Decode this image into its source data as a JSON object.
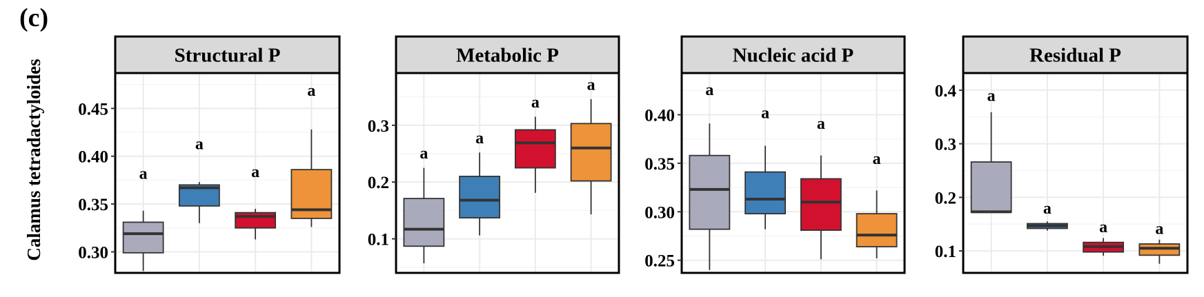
{
  "figure": {
    "panel_label": "(c)",
    "ylabel": "Calamus tetradactyloides"
  },
  "colors": [
    "#a9abbd",
    "#3e7fb8",
    "#d2112e",
    "#ee9339"
  ],
  "chart_data": [
    {
      "type": "box",
      "title": "Structural P",
      "ylim": [
        0.278,
        0.487
      ],
      "yticks": [
        0.3,
        0.35,
        0.4,
        0.45
      ],
      "ytick_labels": [
        "0.30",
        "0.35",
        "0.40",
        "0.45"
      ],
      "grid": true,
      "groups": [
        {
          "whisker_low": 0.28,
          "q1": 0.299,
          "median": 0.319,
          "q3": 0.331,
          "whisker_high": 0.343,
          "letter": "a",
          "letter_y": 0.382
        },
        {
          "whisker_low": 0.33,
          "q1": 0.348,
          "median": 0.367,
          "q3": 0.37,
          "whisker_high": 0.373,
          "letter": "a",
          "letter_y": 0.413
        },
        {
          "whisker_low": 0.313,
          "q1": 0.325,
          "median": 0.337,
          "q3": 0.341,
          "whisker_high": 0.345,
          "letter": "a",
          "letter_y": 0.384
        },
        {
          "whisker_low": 0.326,
          "q1": 0.335,
          "median": 0.344,
          "q3": 0.386,
          "whisker_high": 0.428,
          "letter": "a",
          "letter_y": 0.469
        }
      ]
    },
    {
      "type": "box",
      "title": "Metabolic P",
      "ylim": [
        0.04,
        0.392
      ],
      "yticks": [
        0.1,
        0.2,
        0.3
      ],
      "ytick_labels": [
        "0.1",
        "0.2",
        "0.3"
      ],
      "grid": true,
      "groups": [
        {
          "whisker_low": 0.057,
          "q1": 0.087,
          "median": 0.117,
          "q3": 0.171,
          "whisker_high": 0.225,
          "letter": "a",
          "letter_y": 0.251
        },
        {
          "whisker_low": 0.106,
          "q1": 0.137,
          "median": 0.168,
          "q3": 0.21,
          "whisker_high": 0.252,
          "letter": "a",
          "letter_y": 0.278
        },
        {
          "whisker_low": 0.181,
          "q1": 0.225,
          "median": 0.269,
          "q3": 0.292,
          "whisker_high": 0.315,
          "letter": "a",
          "letter_y": 0.341
        },
        {
          "whisker_low": 0.143,
          "q1": 0.202,
          "median": 0.26,
          "q3": 0.303,
          "whisker_high": 0.346,
          "letter": "a",
          "letter_y": 0.372
        }
      ]
    },
    {
      "type": "box",
      "title": "Nucleic acid P",
      "ylim": [
        0.237,
        0.443
      ],
      "yticks": [
        0.25,
        0.3,
        0.35,
        0.4
      ],
      "ytick_labels": [
        "0.25",
        "0.30",
        "0.35",
        "0.40"
      ],
      "grid": true,
      "groups": [
        {
          "whisker_low": 0.24,
          "q1": 0.282,
          "median": 0.323,
          "q3": 0.358,
          "whisker_high": 0.391,
          "letter": "a",
          "letter_y": 0.426
        },
        {
          "whisker_low": 0.282,
          "q1": 0.298,
          "median": 0.313,
          "q3": 0.341,
          "whisker_high": 0.368,
          "letter": "a",
          "letter_y": 0.402
        },
        {
          "whisker_low": 0.251,
          "q1": 0.281,
          "median": 0.31,
          "q3": 0.334,
          "whisker_high": 0.358,
          "letter": "a",
          "letter_y": 0.391
        },
        {
          "whisker_low": 0.252,
          "q1": 0.264,
          "median": 0.276,
          "q3": 0.298,
          "whisker_high": 0.322,
          "letter": "a",
          "letter_y": 0.355
        }
      ]
    },
    {
      "type": "box",
      "title": "Residual P",
      "ylim": [
        0.059,
        0.432
      ],
      "yticks": [
        0.1,
        0.2,
        0.3,
        0.4
      ],
      "ytick_labels": [
        "0.1",
        "0.2",
        "0.3",
        "0.4"
      ],
      "grid": true,
      "groups": [
        {
          "whisker_low": 0.172,
          "q1": 0.172,
          "median": 0.173,
          "q3": 0.266,
          "whisker_high": 0.359,
          "letter": "a",
          "letter_y": 0.39
        },
        {
          "whisker_low": 0.138,
          "q1": 0.142,
          "median": 0.147,
          "q3": 0.151,
          "whisker_high": 0.155,
          "letter": "a",
          "letter_y": 0.18
        },
        {
          "whisker_low": 0.091,
          "q1": 0.098,
          "median": 0.108,
          "q3": 0.116,
          "whisker_high": 0.124,
          "letter": "a",
          "letter_y": 0.145
        },
        {
          "whisker_low": 0.076,
          "q1": 0.092,
          "median": 0.105,
          "q3": 0.113,
          "whisker_high": 0.121,
          "letter": "a",
          "letter_y": 0.142
        }
      ]
    }
  ]
}
